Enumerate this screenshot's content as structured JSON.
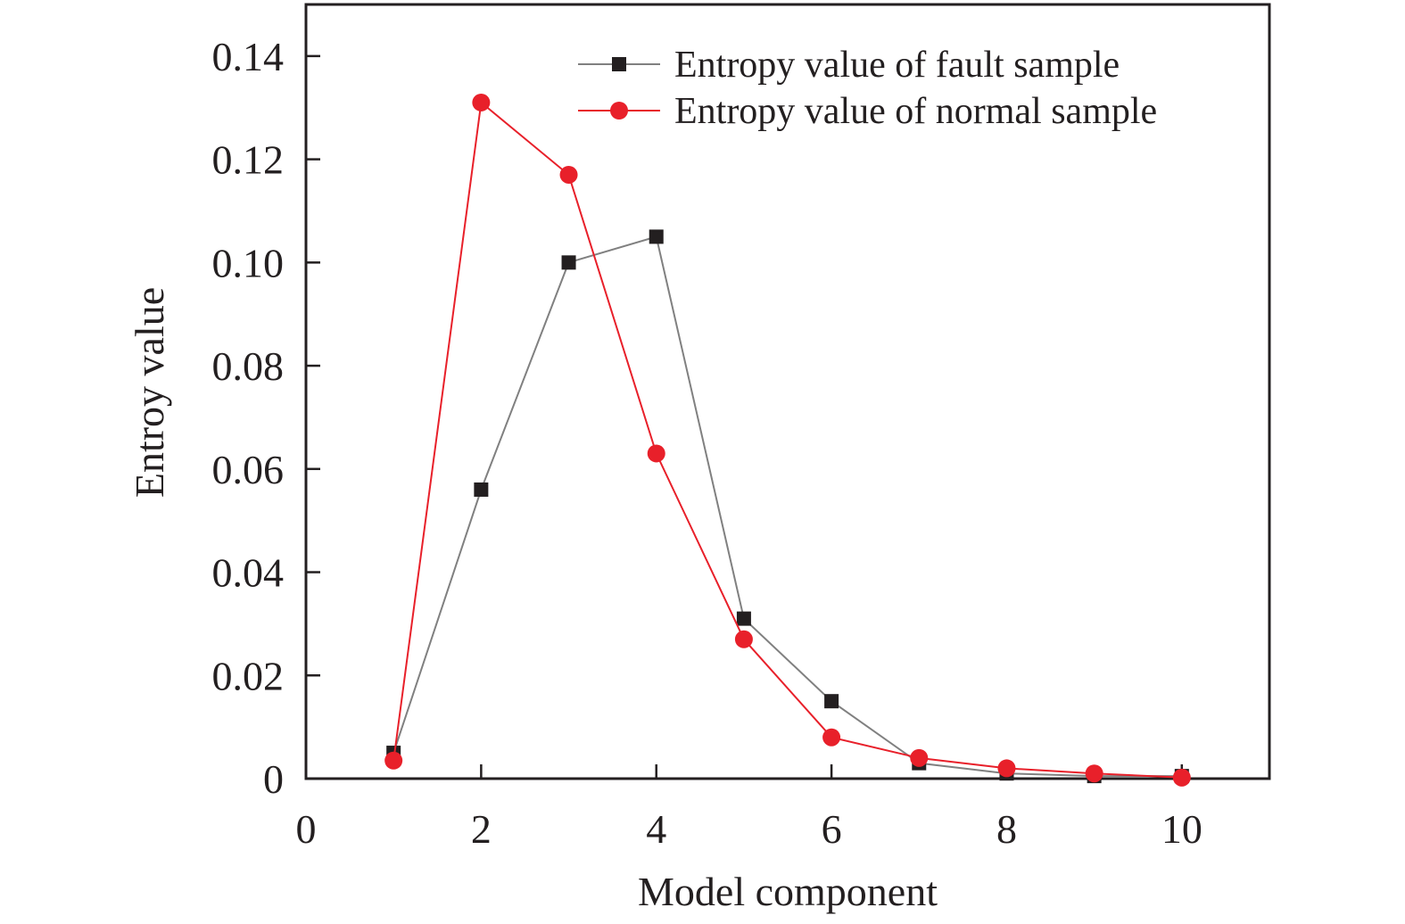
{
  "chart_data": {
    "type": "line",
    "title": "",
    "xlabel": "Model component",
    "ylabel": "Entroy value",
    "xlim": [
      0,
      11
    ],
    "ylim": [
      0,
      0.15
    ],
    "x_ticks": [
      0,
      2,
      4,
      6,
      8,
      10
    ],
    "x_tick_labels": [
      "0",
      "2",
      "4",
      "6",
      "8",
      "10"
    ],
    "y_ticks": [
      0,
      0.02,
      0.04,
      0.06,
      0.08,
      0.1,
      0.12,
      0.14
    ],
    "y_tick_labels": [
      "0",
      "0.02",
      "0.04",
      "0.06",
      "0.08",
      "0.10",
      "0.12",
      "0.14"
    ],
    "grid": false,
    "legend_position": "top-right",
    "x": [
      1,
      2,
      3,
      4,
      5,
      6,
      7,
      8,
      9,
      10
    ],
    "series": [
      {
        "name": "Entropy value of fault sample",
        "marker": "square",
        "color": "#231f20",
        "line_color": "#808080",
        "values": [
          0.005,
          0.056,
          0.1,
          0.105,
          0.031,
          0.015,
          0.003,
          0.001,
          0.0005,
          0.0005
        ]
      },
      {
        "name": "Entropy value of normal sample",
        "marker": "circle",
        "color": "#e8202a",
        "line_color": "#e8202a",
        "values": [
          0.0035,
          0.131,
          0.117,
          0.063,
          0.027,
          0.008,
          0.004,
          0.002,
          0.001,
          0.0002
        ]
      }
    ]
  }
}
